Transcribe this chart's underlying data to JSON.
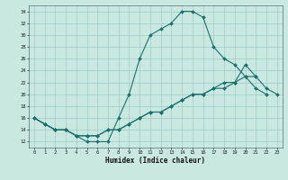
{
  "xlabel": "Humidex (Indice chaleur)",
  "bg_color": "#c8e8e0",
  "line_color": "#1a7070",
  "grid_color": "#a0ccc8",
  "xlim": [
    -0.5,
    23.5
  ],
  "ylim": [
    11,
    35
  ],
  "xticks": [
    0,
    1,
    2,
    3,
    4,
    5,
    6,
    7,
    8,
    9,
    10,
    11,
    12,
    13,
    14,
    15,
    16,
    17,
    18,
    19,
    20,
    21,
    22,
    23
  ],
  "yticks": [
    12,
    14,
    16,
    18,
    20,
    22,
    24,
    26,
    28,
    30,
    32,
    34
  ],
  "line1_x": [
    0,
    1,
    2,
    3,
    4,
    5,
    6,
    7,
    8,
    9,
    10,
    11,
    12,
    13,
    14,
    15,
    16,
    17,
    18,
    19,
    20,
    21,
    22
  ],
  "line1_y": [
    16,
    15,
    14,
    14,
    13,
    12,
    12,
    12,
    16,
    20,
    26,
    30,
    31,
    32,
    34,
    34,
    33,
    28,
    26,
    25,
    23,
    21,
    20
  ],
  "line2_x": [
    0,
    1,
    2,
    3,
    4,
    5,
    6,
    7,
    8,
    9,
    10,
    11,
    12,
    13,
    14,
    15,
    16,
    17,
    18,
    19,
    20,
    21,
    22,
    23
  ],
  "line2_y": [
    16,
    15,
    14,
    14,
    13,
    13,
    13,
    14,
    14,
    15,
    16,
    17,
    17,
    18,
    19,
    20,
    20,
    21,
    22,
    22,
    25,
    23,
    21,
    20
  ],
  "line3_x": [
    0,
    1,
    2,
    3,
    4,
    5,
    6,
    7,
    8,
    9,
    10,
    11,
    12,
    13,
    14,
    15,
    16,
    17,
    18,
    19,
    20,
    21,
    22,
    23
  ],
  "line3_y": [
    16,
    15,
    14,
    14,
    13,
    13,
    13,
    14,
    14,
    15,
    16,
    17,
    17,
    18,
    19,
    20,
    20,
    21,
    21,
    22,
    23,
    23,
    null,
    null
  ]
}
